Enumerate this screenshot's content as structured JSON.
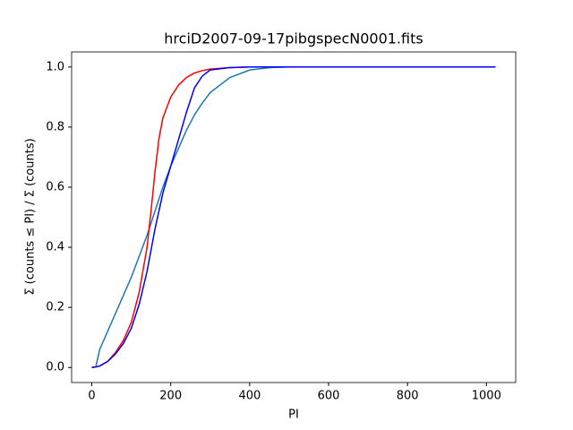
{
  "chart_data": {
    "type": "line",
    "title": "hrciD2007-09-17pibgspecN0001.fits",
    "xlabel": "PI",
    "ylabel": "Σ (counts ≤ PI) / Σ (counts)",
    "x": [
      0,
      10,
      20,
      40,
      60,
      80,
      100,
      120,
      140,
      150,
      160,
      170,
      180,
      200,
      220,
      240,
      260,
      280,
      300,
      350,
      400,
      450,
      500,
      1023
    ],
    "series": [
      {
        "color": "#1f77b4",
        "values": [
          0,
          0.002,
          0.06,
          0.12,
          0.18,
          0.24,
          0.3,
          0.37,
          0.44,
          0.48,
          0.52,
          0.56,
          0.6,
          0.67,
          0.73,
          0.79,
          0.84,
          0.88,
          0.915,
          0.965,
          0.99,
          0.998,
          1,
          1
        ]
      },
      {
        "color": "#ff0000",
        "values": [
          0,
          0.002,
          0.005,
          0.02,
          0.05,
          0.09,
          0.15,
          0.25,
          0.4,
          0.52,
          0.65,
          0.76,
          0.83,
          0.9,
          0.94,
          0.965,
          0.98,
          0.988,
          0.993,
          0.998,
          1,
          1,
          1,
          1
        ]
      },
      {
        "color": "#0000ff",
        "values": [
          0,
          0.002,
          0.005,
          0.02,
          0.045,
          0.08,
          0.13,
          0.21,
          0.32,
          0.39,
          0.46,
          0.52,
          0.58,
          0.67,
          0.76,
          0.85,
          0.93,
          0.97,
          0.99,
          0.998,
          1,
          1,
          1,
          1
        ]
      }
    ],
    "xlim": [
      -51.15,
      1074.15
    ],
    "xticks": [
      0,
      200,
      400,
      600,
      800,
      1000
    ],
    "ylim": [
      -0.05,
      1.05
    ],
    "yticks": [
      {
        "value": 0,
        "label": "0.0"
      },
      0.2,
      0.4,
      0.6,
      0.8,
      {
        "value": 1,
        "label": "1.0"
      }
    ],
    "grid": false
  }
}
